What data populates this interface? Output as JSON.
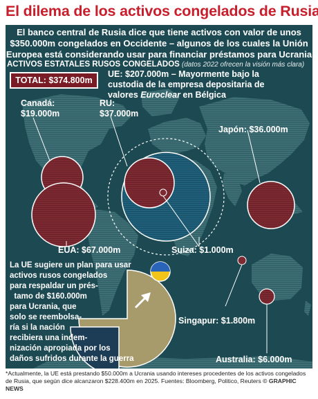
{
  "title": "El dilema de los activos congelados de Rusia",
  "intro": "El banco central de Rusia dice que tiene activos con valor de unos $350.000m congelados en Occidente – algunos de los cuales la Unión Europea está considerando usar para financiar préstamos para Ucrania",
  "subhead": {
    "label": "ACTIVOS ESTATALES RUSOS CONGELADOS",
    "note": "(datos 2022 ofrecen la visión más clara)"
  },
  "total": "TOTAL: $374.800m",
  "eu": {
    "line1": "UE: $207.000m – Mayormente bajo la",
    "line2": "custodia de la empresa depositaria de",
    "line3_pre": "valores ",
    "line3_italic": "Euroclear",
    "line3_post": " en Bélgica"
  },
  "labels": {
    "canada_1": "Canadá:",
    "canada_2": "$19.000m",
    "ru_1": "RU:",
    "ru_2": "$37.000m",
    "japon": "Japón: $36.000m",
    "eua": "EUA: $67.000m",
    "suiza": "Suiza: $1.000m",
    "singapur": "Singapur: $1.800m",
    "australia": "Australia: $6.000m"
  },
  "box_lines": [
    "La UE sugiere un plan para usar",
    "activos rusos congelados",
    "para respaldar un prés-",
    "  tamo de $160.000m",
    "para Ucrania, que",
    "solo se reembolsa-",
    "ría si la nación",
    "recibiera una indem-",
    "nización apropiada por los",
    "daños sufridos durante la guerra"
  ],
  "footer": {
    "note": "*Actualmente, la UE está prestando $50.000m a Ucrania usando intereses procedentes de los activos congelados de Rusia, que según dice alcanzaron $228.400m en 2025.",
    "sources": "Fuentes: Bloomberg, Politico, Reuters",
    "credit": "© GRAPHIC NEWS"
  },
  "colors": {
    "title_red": "#c81e2b",
    "background": "#1d4a52",
    "land": "#3f6f74",
    "bubble_russia": "#7d2a32",
    "bubble_eu": "#1f5f78",
    "pie_fill": "#a79a6b",
    "pie_slice": "#1d3c55",
    "ukraine_blue": "#2a64b8",
    "ukraine_yellow": "#f2c318"
  },
  "icons": [
    "ukraine-flag-icon",
    "arrow-icon"
  ]
}
